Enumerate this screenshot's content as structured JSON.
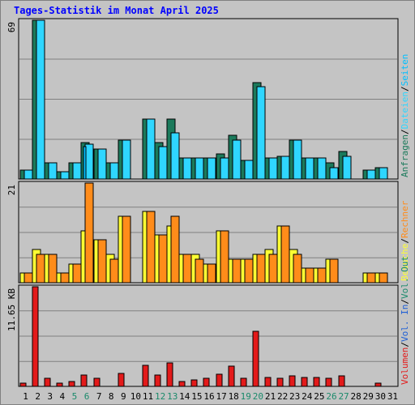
{
  "title": "Tages-Statistik im Monat April 2025",
  "colors": {
    "title": "#0000ff",
    "background": "#c4c4c4",
    "grid": "#808080",
    "hits": "#1b7a5b",
    "files": "#2fd6ff",
    "pages": "#00c0ff",
    "visits": "#ffff33",
    "sites": "#ff8c1a",
    "kbytes": "#e31a1a",
    "weekday": "#000000",
    "weekend": "#1b8a6b"
  },
  "chart_data": [
    {
      "type": "bar",
      "panel": "top",
      "top_label": "69",
      "ylim": [
        0,
        69
      ],
      "x": [
        "1",
        "2",
        "3",
        "4",
        "5",
        "6",
        "7",
        "8",
        "9",
        "10",
        "11",
        "12",
        "13",
        "14",
        "15",
        "16",
        "17",
        "18",
        "19",
        "20",
        "21",
        "22",
        "23",
        "24",
        "25",
        "26",
        "27",
        "28",
        "29",
        "30",
        "31"
      ],
      "weekend_days": [
        "5",
        "6",
        "12",
        "13",
        "19",
        "20",
        "26",
        "27"
      ],
      "legend": [
        "Anfragen",
        "/",
        "Dateien",
        "/",
        "Seiten"
      ],
      "series": [
        {
          "name": "Anfragen",
          "color": "#1b7a5b",
          "values": [
            4,
            69,
            7,
            3,
            7,
            16,
            13,
            7,
            17,
            0,
            26,
            16,
            26,
            9,
            9,
            9,
            11,
            19,
            8,
            42,
            9,
            10,
            17,
            9,
            9,
            7,
            12,
            0,
            4,
            5,
            0
          ]
        },
        {
          "name": "Dateien",
          "color": "#2fd6ff",
          "values": [
            4,
            69,
            7,
            3,
            7,
            15,
            13,
            7,
            17,
            0,
            26,
            14,
            20,
            9,
            9,
            9,
            9,
            17,
            8,
            40,
            9,
            10,
            17,
            9,
            9,
            5,
            10,
            0,
            4,
            5,
            0
          ]
        },
        {
          "name": "Seiten",
          "color": "#00c0ff",
          "values": [
            0,
            0,
            0,
            0,
            0,
            14,
            0,
            0,
            0,
            0,
            0,
            0,
            0,
            0,
            0,
            0,
            0,
            0,
            0,
            0,
            0,
            0,
            0,
            0,
            0,
            0,
            0,
            0,
            0,
            0,
            0
          ]
        }
      ]
    },
    {
      "type": "bar",
      "panel": "middle",
      "top_label": "21",
      "ylim": [
        0,
        21
      ],
      "x": [
        "1",
        "2",
        "3",
        "4",
        "5",
        "6",
        "7",
        "8",
        "9",
        "10",
        "11",
        "12",
        "13",
        "14",
        "15",
        "16",
        "17",
        "18",
        "19",
        "20",
        "21",
        "22",
        "23",
        "24",
        "25",
        "26",
        "27",
        "28",
        "29",
        "30",
        "31"
      ],
      "legend": [
        "Besuche",
        "/",
        "Rechner"
      ],
      "series": [
        {
          "name": "Besuche",
          "color": "#ffff33",
          "values": [
            2,
            7,
            6,
            2,
            4,
            11,
            9,
            6,
            14,
            0,
            15,
            10,
            12,
            6,
            6,
            4,
            11,
            5,
            5,
            6,
            7,
            12,
            7,
            3,
            3,
            5,
            0,
            0,
            2,
            2,
            0
          ]
        },
        {
          "name": "Rechner",
          "color": "#ff8c1a",
          "values": [
            2,
            6,
            6,
            2,
            4,
            21,
            9,
            5,
            14,
            0,
            15,
            10,
            14,
            6,
            5,
            4,
            11,
            5,
            5,
            6,
            6,
            12,
            6,
            3,
            3,
            5,
            0,
            0,
            2,
            2,
            0
          ]
        }
      ]
    },
    {
      "type": "bar",
      "panel": "bottom",
      "top_label": "11.65 KB",
      "ylim": [
        0,
        11.65
      ],
      "x": [
        "1",
        "2",
        "3",
        "4",
        "5",
        "6",
        "7",
        "8",
        "9",
        "10",
        "11",
        "12",
        "13",
        "14",
        "15",
        "16",
        "17",
        "18",
        "19",
        "20",
        "21",
        "22",
        "23",
        "24",
        "25",
        "26",
        "27",
        "28",
        "29",
        "30",
        "31"
      ],
      "legend": [
        "Volumen",
        "/",
        "Vol. In",
        "/",
        "Vol. Out"
      ],
      "series": [
        {
          "name": "Volumen",
          "color": "#e31a1a",
          "values": [
            0.4,
            11.65,
            0.9,
            0.4,
            0.6,
            1.3,
            0.9,
            0,
            1.5,
            0,
            2.5,
            1.3,
            2.7,
            0.6,
            0.8,
            0.9,
            1.4,
            2.4,
            0.9,
            6.4,
            1.0,
            0.9,
            1.2,
            1.0,
            1.0,
            0.9,
            1.2,
            0,
            0,
            0.4,
            0
          ]
        }
      ]
    }
  ]
}
